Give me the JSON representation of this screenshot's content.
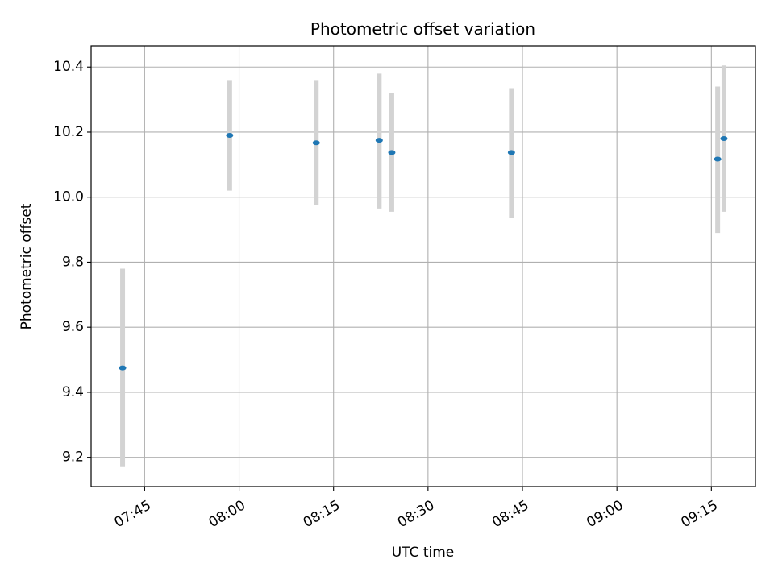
{
  "chart_data": {
    "type": "scatter",
    "title": "Photometric offset variation",
    "xlabel": "UTC time",
    "ylabel": "Photometric offset",
    "xlim": [
      "07:36:30",
      "09:22:00"
    ],
    "ylim": [
      9.11,
      10.465
    ],
    "grid": true,
    "x_ticks": [
      "07:45",
      "08:00",
      "08:15",
      "08:30",
      "08:45",
      "09:00",
      "09:15"
    ],
    "y_ticks": [
      "9.2",
      "9.4",
      "9.6",
      "9.8",
      "10.0",
      "10.2",
      "10.4"
    ],
    "colors": {
      "marker": "#1f77b4",
      "errorbar": "#d3d3d3",
      "grid": "#b0b0b0"
    },
    "points": [
      {
        "x": "07:41:30",
        "y": 9.475,
        "ymin": 9.17,
        "ymax": 9.78
      },
      {
        "x": "07:58:30",
        "y": 10.19,
        "ymin": 10.02,
        "ymax": 10.36
      },
      {
        "x": "08:12:15",
        "y": 10.167,
        "ymin": 9.975,
        "ymax": 10.36
      },
      {
        "x": "08:22:15",
        "y": 10.175,
        "ymin": 9.965,
        "ymax": 10.38
      },
      {
        "x": "08:24:15",
        "y": 10.137,
        "ymin": 9.955,
        "ymax": 10.32
      },
      {
        "x": "08:43:15",
        "y": 10.137,
        "ymin": 9.935,
        "ymax": 10.335
      },
      {
        "x": "09:16:00",
        "y": 10.117,
        "ymin": 9.89,
        "ymax": 10.34
      },
      {
        "x": "09:17:00",
        "y": 10.18,
        "ymin": 9.955,
        "ymax": 10.405
      }
    ]
  }
}
